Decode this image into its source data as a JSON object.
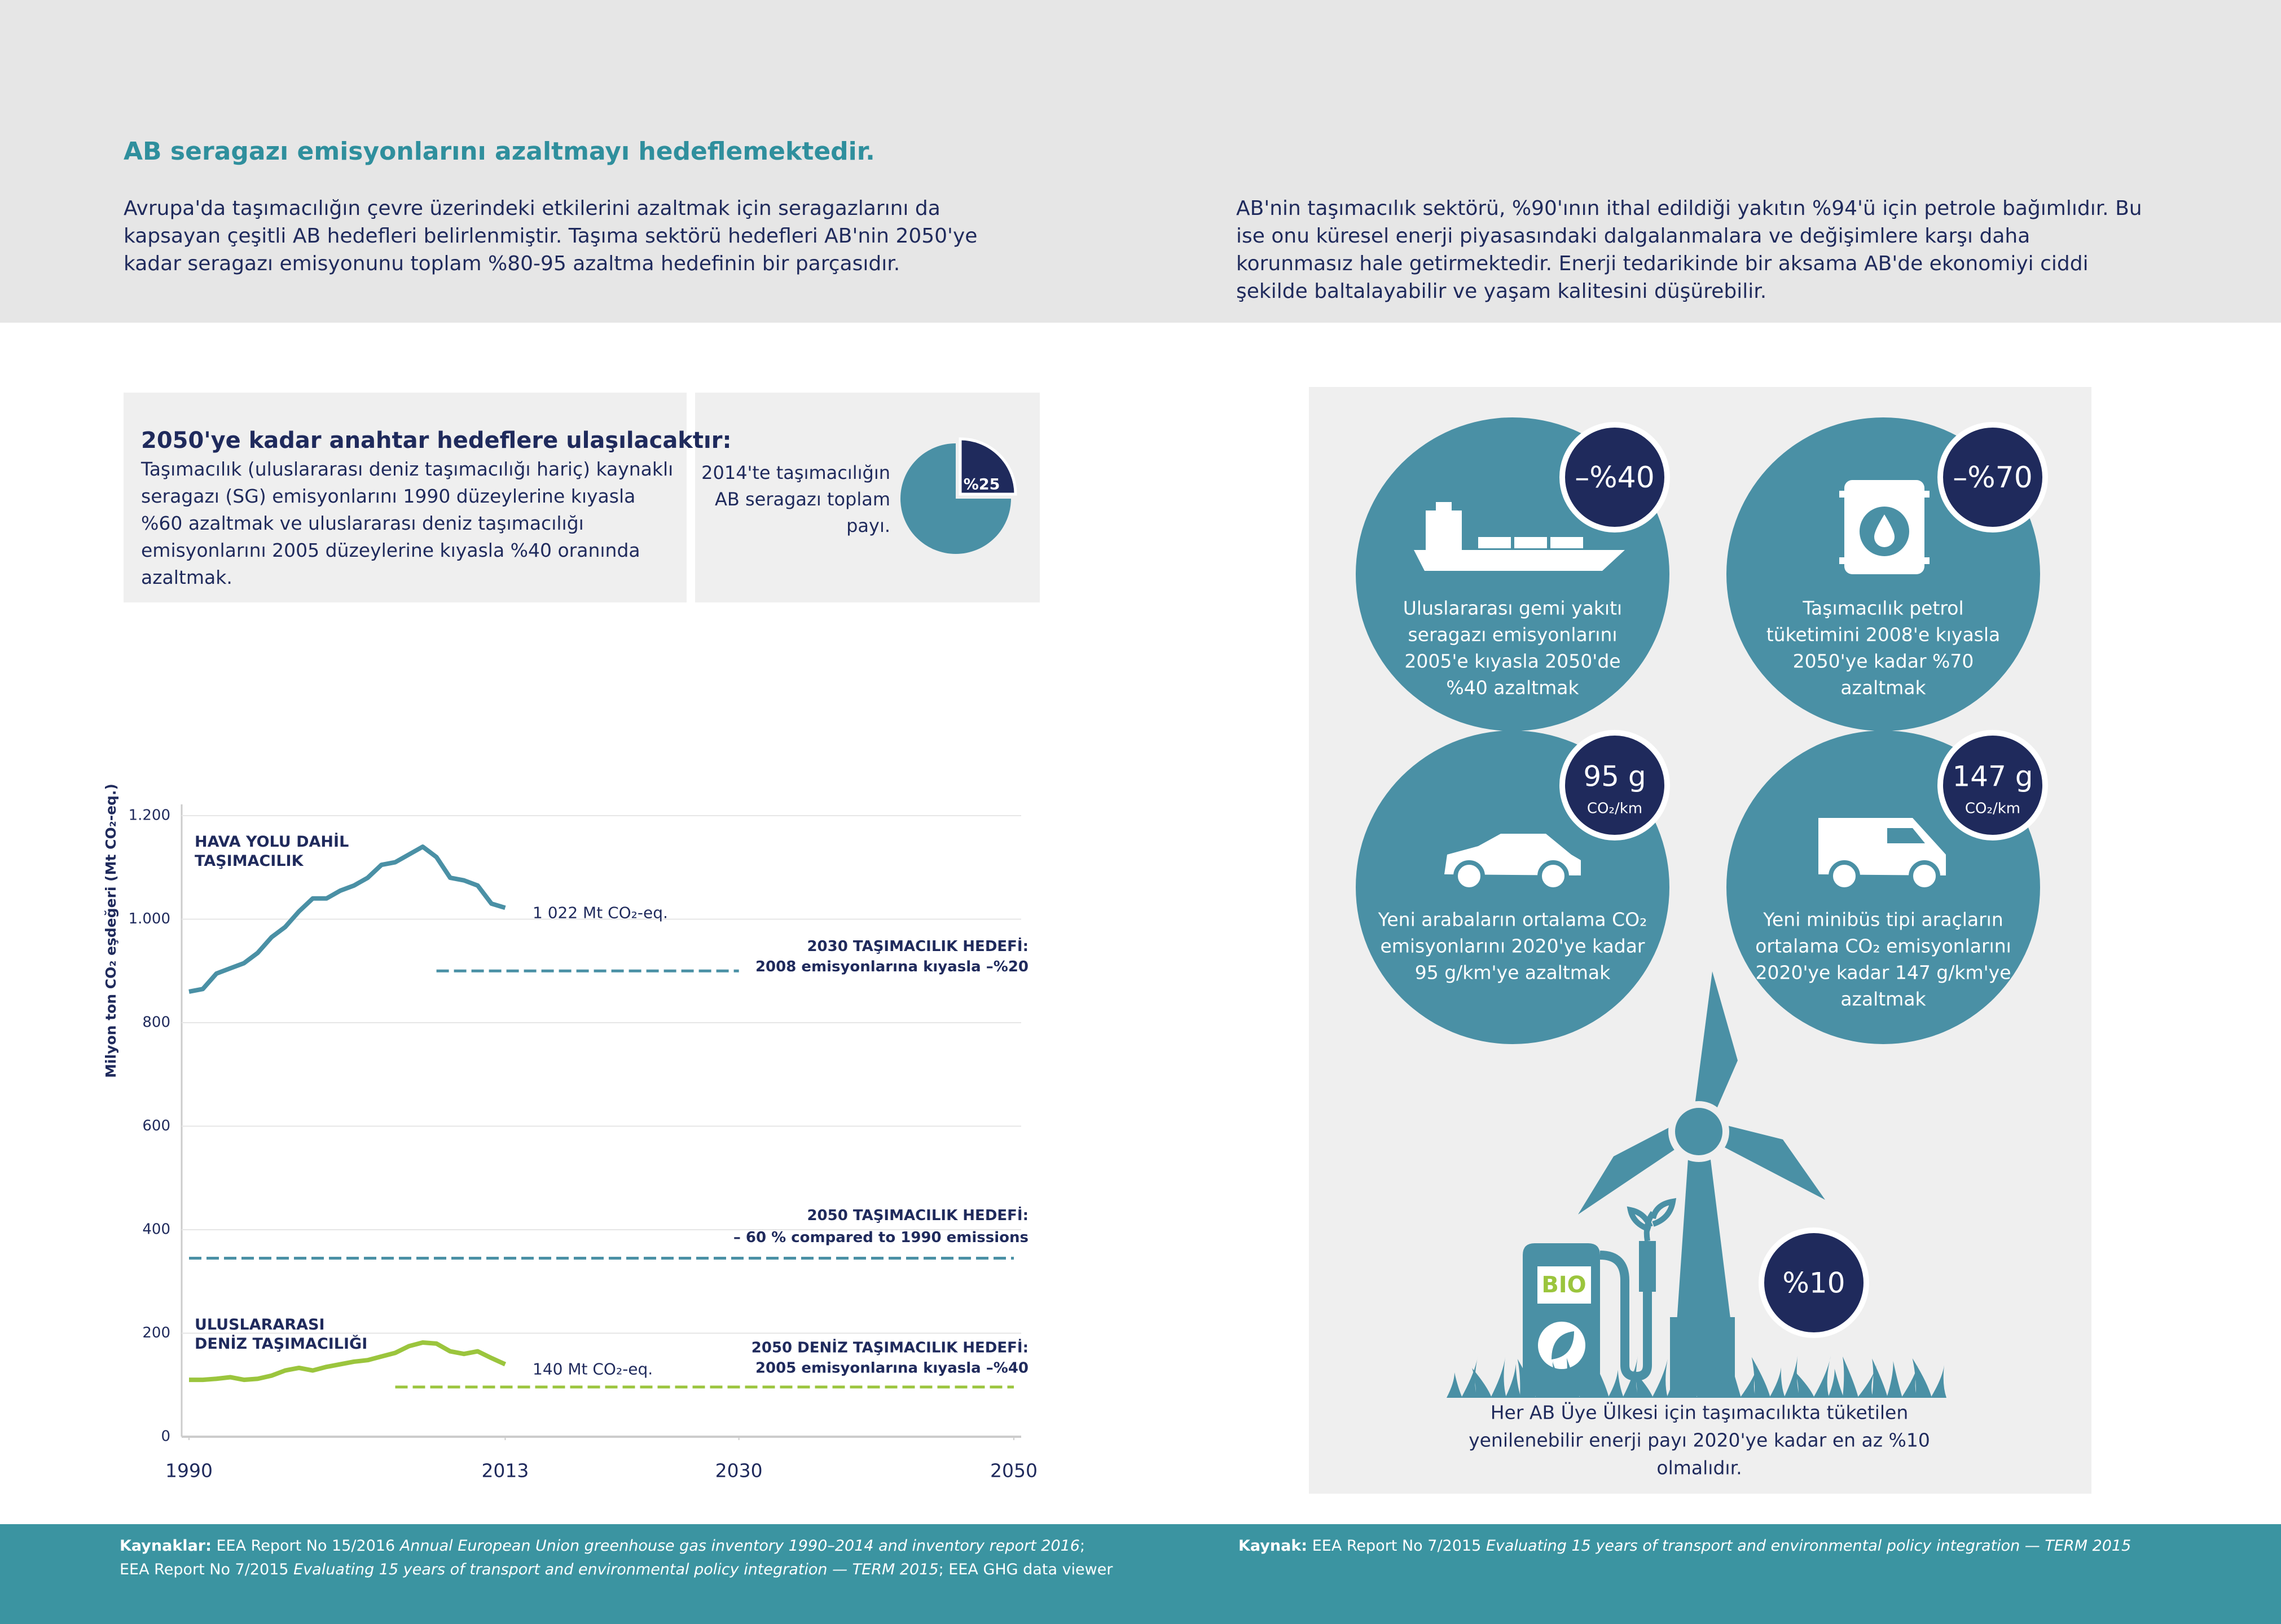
{
  "header": {
    "title": "AB seragazı emisyonlarını azaltmayı hedeflemektedir.",
    "left_text": "Avrupa'da taşımacılığın çevre üzerindeki etkilerini azaltmak için seragazlarını da kapsayan çeşitli AB hedefleri belirlenmiştir. Taşıma sektörü hedefleri AB'nin 2050'ye kadar seragazı emisyonunu toplam %80-95 azaltma hedefinin bir parçasıdır.",
    "right_text": "AB'nin taşımacılık sektörü, %90'ının ithal edildiği yakıtın %94'ü için petrole bağımlıdır. Bu ise onu küresel enerji piyasasındaki dalgalanmalara ve değişimlere karşı daha korunmasız hale getirmektedir. Enerji tedarikinde bir aksama AB'de ekonomiyi ciddi şekilde baltalayabilir ve yaşam kalitesini düşürebilir."
  },
  "key_targets": {
    "title": "2050'ye kadar anahtar hedeflere ulaşılacaktır:",
    "text": "Taşımacılık (uluslararası deniz taşımacılığı hariç) kaynaklı seragazı (SG) emisyonlarını 1990 düzeylerine kıyasla %60 azaltmak ve uluslararası deniz taşımacılığı emisyonlarını 2005 düzeylerine kıyasla %40 oranında azaltmak."
  },
  "share": {
    "type": "pie",
    "text_lines": [
      "2014'te taşımacılığın",
      "AB seragazı toplam",
      "payı."
    ],
    "value": 25,
    "value_label": "%25",
    "color": "#1f2a5c",
    "rest_color": "#4a90a5"
  },
  "chart_data": {
    "type": "line",
    "y_label": "Milyon ton CO₂ eşdeğeri (Mt CO₂-eq.)",
    "xlim": [
      1990,
      2050
    ],
    "xticks": [
      1990,
      2013,
      2030,
      2050
    ],
    "ylim": [
      0,
      1200
    ],
    "yticks": [
      0,
      200,
      400,
      600,
      800,
      {
        "value": 1000,
        "label": "1.000"
      },
      {
        "value": 1200,
        "label": "1.200"
      }
    ],
    "grid": true,
    "x": [
      1990,
      1991,
      1992,
      1993,
      1994,
      1995,
      1996,
      1997,
      1998,
      1999,
      2000,
      2001,
      2002,
      2003,
      2004,
      2005,
      2006,
      2007,
      2008,
      2009,
      2010,
      2011,
      2012,
      2013
    ],
    "series": [
      {
        "name": "HAVA YOLU DAHİL TAŞIMACILIK",
        "color": "#4a90a5",
        "end_label": "1 022 Mt CO₂-eq.",
        "values": [
          860,
          865,
          895,
          905,
          915,
          935,
          965,
          985,
          1015,
          1040,
          1040,
          1055,
          1065,
          1080,
          1105,
          1110,
          1125,
          1140,
          1120,
          1080,
          1075,
          1065,
          1030,
          1022
        ]
      },
      {
        "name": "ULUSLARARASI DENİZ TAŞIMACILIĞI",
        "color": "#9bc53d",
        "end_label": "140 Mt CO₂-eq.",
        "values": [
          110,
          110,
          112,
          115,
          110,
          112,
          118,
          128,
          133,
          128,
          135,
          140,
          145,
          148,
          155,
          162,
          175,
          182,
          180,
          165,
          160,
          165,
          152,
          140
        ]
      }
    ],
    "targets": [
      {
        "label": [
          "2030 TAŞIMACILIK HEDEFİ:",
          "2008 emisyonlarına kıyasla –%20"
        ],
        "x": [
          2008,
          2030
        ],
        "value": 900,
        "color": "#4a90a5"
      },
      {
        "label": [
          "2050 TAŞIMACILIK HEDEFİ:",
          "– 60 % compared to 1990 emissions"
        ],
        "x": [
          1990,
          2050
        ],
        "value": 345,
        "color": "#4a90a5"
      },
      {
        "label": [
          "2050 DENİZ TAŞIMACILIK HEDEFİ:",
          "2005 emisyonlarına kıyasla –%40"
        ],
        "x": [
          2005,
          2050
        ],
        "value": 96,
        "color": "#9bc53d"
      }
    ]
  },
  "goals": [
    {
      "badge": "–%40",
      "text_lines": [
        "Uluslararası gemi yakıtı",
        "seragazı emisyonlarını",
        "2005'e kıyasla 2050'de",
        "%40 azaltmak"
      ]
    },
    {
      "badge": "–%70",
      "text_lines": [
        "Taşımacılık petrol",
        "tüketimini 2008'e kıyasla",
        "2050'ye kadar %70",
        "azaltmak"
      ]
    },
    {
      "badge": "95 g",
      "badge_unit": "CO₂/km",
      "text_lines": [
        "Yeni arabaların ortalama CO₂",
        "emisyonlarını 2020'ye kadar",
        "95 g/km'ye azaltmak"
      ]
    },
    {
      "badge": "147 g",
      "badge_unit": "CO₂/km",
      "text_lines": [
        "Yeni minibüs tipi araçların",
        "ortalama CO₂ emisyonlarını",
        "2020'ye kadar 147 g/km'ye",
        "azaltmak"
      ]
    }
  ],
  "renewables": {
    "badge": "%10",
    "pump_label": "BIO",
    "text_lines": [
      "Her AB Üye Ülkesi için taşımacılıkta tüketilen",
      "yenilenebilir enerji payı 2020'ye kadar en az %10",
      "olmalıdır."
    ]
  },
  "footer": {
    "left": [
      "Kaynaklar:",
      "EEA Report No 15/2016",
      "Annual European Union greenhouse gas inventory 1990–2014 and inventory report 2016",
      ";",
      "EEA Report No 7/2015",
      "Evaluating 15 years of transport and environmental policy integration — TERM 2015",
      "; EEA GHG data viewer"
    ],
    "right": [
      "Kaynak:",
      "EEA Report No 7/2015",
      "Evaluating 15 years of transport and environmental policy integration — TERM 2015"
    ]
  }
}
